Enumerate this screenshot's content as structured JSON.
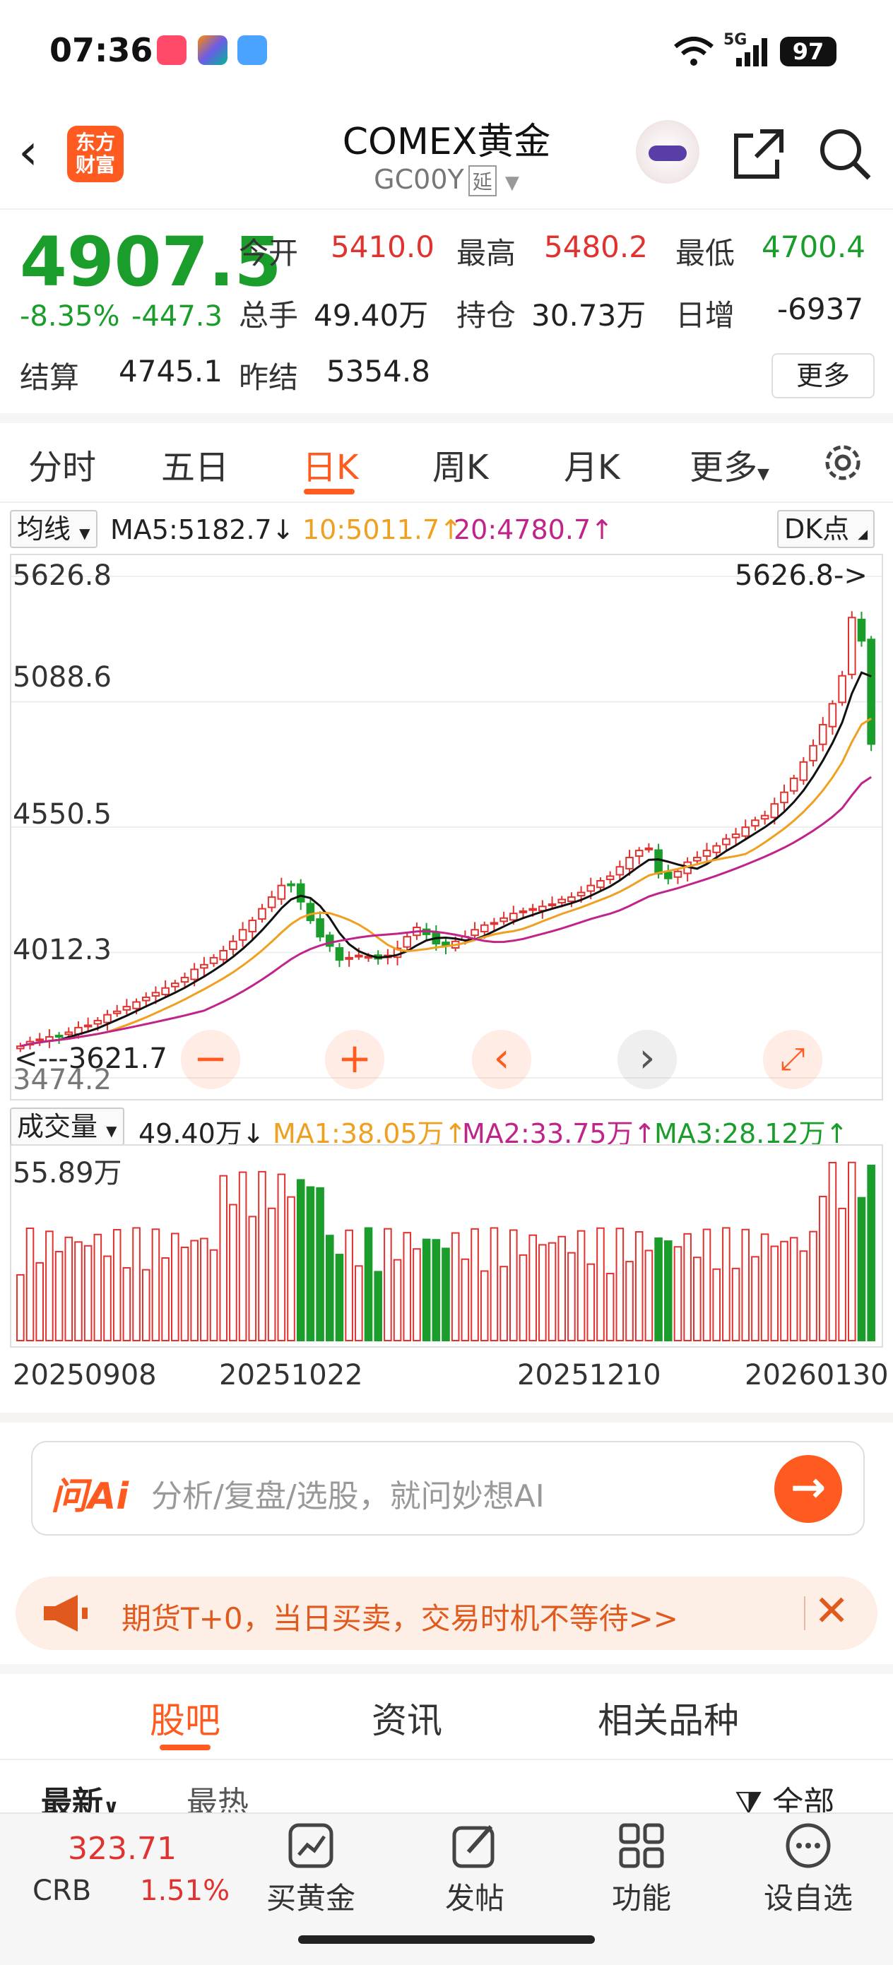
{
  "status": {
    "time": "07:36",
    "network": "5G",
    "battery": "97"
  },
  "header": {
    "logo_text_line1": "东方",
    "logo_text_line2": "财富",
    "title": "COMEX黄金",
    "code": "GC00Y",
    "delay_badge": "延"
  },
  "quote": {
    "price": "4907.5",
    "change_pct": "-8.35%",
    "change": "-447.3",
    "open_label": "今开",
    "open": "5410.0",
    "high_label": "最高",
    "high": "5480.2",
    "low_label": "最低",
    "low": "4700.4",
    "volume_label": "总手",
    "volume": "49.40万",
    "position_label": "持仓",
    "position": "30.73万",
    "daily_inc_label": "日增",
    "daily_inc": "-6937",
    "settle_label": "结算",
    "settle": "4745.1",
    "prev_settle_label": "昨结",
    "prev_settle": "5354.8",
    "more_button": "更多"
  },
  "tabs": [
    "分时",
    "五日",
    "日K",
    "周K",
    "月K",
    "更多"
  ],
  "active_tab": "日K",
  "ma_bar": {
    "selector": "均线",
    "ma5": "MA5:5182.7↓",
    "ma10": "10:5011.7↑",
    "ma20": "20:4780.7↑",
    "dk_button": "DK点"
  },
  "price_axis": [
    "5626.8",
    "5088.6",
    "4550.5",
    "4012.3",
    "3474.2"
  ],
  "chart_annotations": {
    "high_marker": "5626.8->",
    "low_marker": "<---3621.7"
  },
  "volume_bar": {
    "selector": "成交量",
    "vol": "49.40万↓",
    "ma1": "MA1:38.05万↑",
    "ma2": "MA2:33.75万↑",
    "ma3": "MA3:28.12万↑",
    "axis_max": "55.89万"
  },
  "date_axis": [
    "20250908",
    "20251022",
    "20251210",
    "20260130"
  ],
  "colors": {
    "up": "#e0322f",
    "down": "#1a9d2a",
    "accent": "#ff5a1f",
    "ma5": "#111111",
    "ma10": "#f0a020",
    "ma20": "#c0248a"
  },
  "chart_data": {
    "type": "candlestick",
    "note_values": "approximate daily closes read from chart",
    "y_range": [
      3474.2,
      5626.8
    ],
    "closes": [
      3610,
      3630,
      3640,
      3650,
      3655,
      3670,
      3690,
      3700,
      3720,
      3745,
      3760,
      3780,
      3800,
      3820,
      3840,
      3860,
      3880,
      3905,
      3940,
      3960,
      3990,
      4020,
      4060,
      4110,
      4150,
      4200,
      4250,
      4300,
      4300,
      4230,
      4150,
      4080,
      4040,
      3980,
      3990,
      4000,
      3995,
      3985,
      4000,
      4030,
      4080,
      4120,
      4090,
      4050,
      4040,
      4060,
      4080,
      4110,
      4130,
      4140,
      4160,
      4180,
      4190,
      4200,
      4210,
      4220,
      4240,
      4250,
      4270,
      4300,
      4320,
      4340,
      4380,
      4420,
      4450,
      4460,
      4350,
      4330,
      4360,
      4400,
      4420,
      4450,
      4470,
      4500,
      4520,
      4550,
      4580,
      4600,
      4650,
      4700,
      4760,
      4830,
      4900,
      4990,
      5080,
      5200,
      5450,
      5350,
      4907
    ]
  },
  "ai": {
    "logo": "问Ai",
    "placeholder": "分析/复盘/选股，就问妙想AI"
  },
  "promo": {
    "text": "期货T+0，当日买卖，交易时机不等待>>"
  },
  "bottom_tabs": [
    "股吧",
    "资讯",
    "相关品种"
  ],
  "sub_tabs": {
    "latest": "最新",
    "hot": "最热",
    "filter": "全部"
  },
  "nav": {
    "crb_value": "323.71",
    "crb_label": "CRB",
    "crb_pct": "1.51%",
    "buy_gold": "买黄金",
    "post": "发帖",
    "functions": "功能",
    "watchlist": "设自选"
  }
}
